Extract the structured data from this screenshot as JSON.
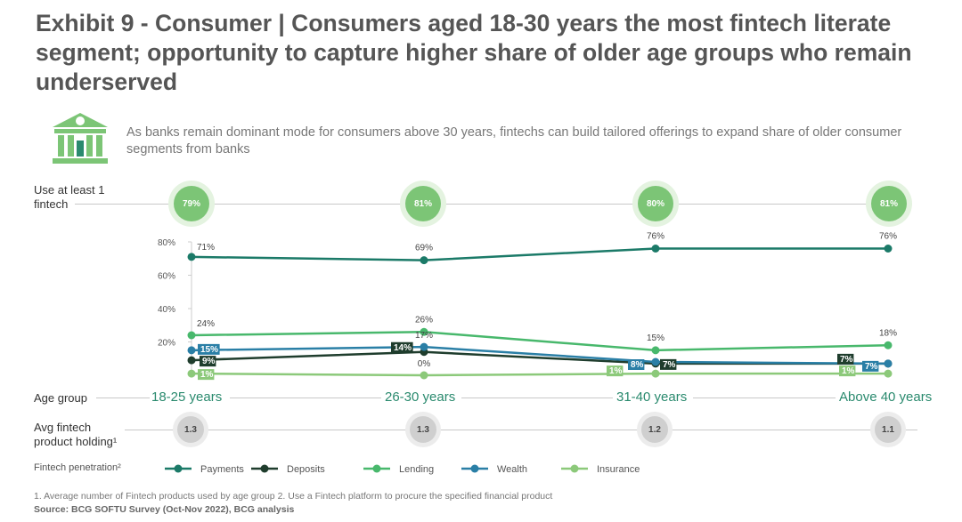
{
  "title": "Exhibit 9 - Consumer | Consumers aged 18-30 years the most fintech literate segment; opportunity to capture higher share of older age groups who remain underserved",
  "subtitle": "As banks remain dominant mode for consumers above 30 years, fintechs can build tailored offerings to expand share of older consumer segments from banks",
  "rows": {
    "use_label": "Use at least 1 fintech",
    "age_label": "Age group",
    "holding_label": "Avg fintech product holding¹",
    "penetration_label": "Fintech penetration²"
  },
  "age_groups": [
    "18-25 years",
    "26-30 years",
    "31-40 years",
    "Above 40 years"
  ],
  "use_at_least_1": [
    "79%",
    "81%",
    "80%",
    "81%"
  ],
  "avg_holding": [
    "1.3",
    "1.3",
    "1.2",
    "1.1"
  ],
  "footnote": "1. Average number of Fintech products used by age group   2. Use a Fintech platform to procure the specified financial product",
  "source": "Source: BCG SOFTU Survey (Oct-Nov 2022), BCG analysis",
  "colors": {
    "payments": "#1b7a68",
    "deposits": "#1f3d2d",
    "lending": "#48b86c",
    "wealth": "#2a7fa6",
    "insurance": "#8cc97a"
  },
  "chart_data": {
    "type": "line",
    "categories": [
      "18-25 years",
      "26-30 years",
      "31-40 years",
      "Above 40 years"
    ],
    "ylim": [
      0,
      80
    ],
    "yticks": [
      "20%",
      "40%",
      "60%",
      "80%"
    ],
    "ytick_values": [
      20,
      40,
      60,
      80
    ],
    "series": [
      {
        "name": "Payments",
        "key": "payments",
        "values": [
          71,
          69,
          76,
          76
        ],
        "labels": [
          "71%",
          "69%",
          "76%",
          "76%"
        ]
      },
      {
        "name": "Deposits",
        "key": "deposits",
        "values": [
          9,
          14,
          7,
          7
        ],
        "labels": [
          "9%",
          "14%",
          "7%",
          "7%"
        ]
      },
      {
        "name": "Lending",
        "key": "lending",
        "values": [
          24,
          26,
          15,
          18
        ],
        "labels": [
          "24%",
          "26%",
          "15%",
          "18%"
        ]
      },
      {
        "name": "Wealth",
        "key": "wealth",
        "values": [
          15,
          17,
          8,
          7
        ],
        "labels": [
          "15%",
          "17%",
          "8%",
          "7%"
        ]
      },
      {
        "name": "Insurance",
        "key": "insurance",
        "values": [
          1,
          0,
          1,
          1
        ],
        "labels": [
          "1%",
          "0%",
          "1%",
          "1%"
        ]
      }
    ]
  }
}
